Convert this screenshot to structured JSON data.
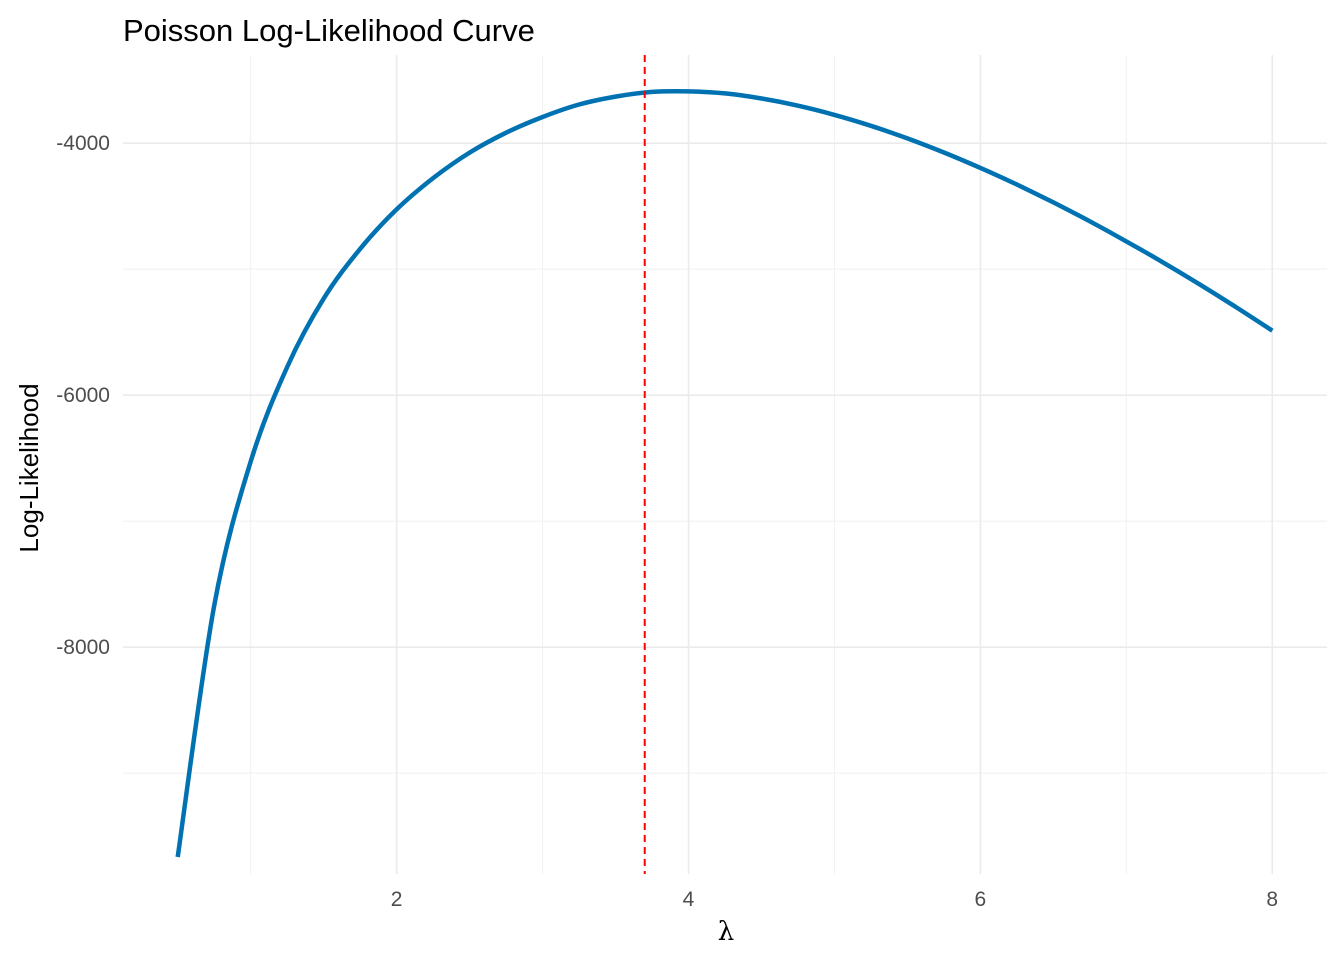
{
  "chart_data": {
    "type": "line",
    "title": "Poisson Log-Likelihood Curve",
    "xlabel": "λ",
    "ylabel": "Log-Likelihood",
    "xlim": [
      0.125,
      8.375
    ],
    "ylim": [
      -9800,
      -3300
    ],
    "x_ticks": [
      2,
      4,
      6,
      8
    ],
    "x_tick_labels": [
      "2",
      "4",
      "6",
      "8"
    ],
    "x_minor_ticks": [
      1,
      3,
      5,
      7
    ],
    "y_ticks": [
      -8000,
      -6000,
      -4000
    ],
    "y_tick_labels": [
      "-8000",
      "-6000",
      "-4000"
    ],
    "y_minor_ticks": [
      -9000,
      -7000,
      -5000
    ],
    "grid": true,
    "legend": "none",
    "series": [
      {
        "color": "#0072B2",
        "x": [
          0.5,
          0.75,
          1.0,
          1.25,
          1.5,
          1.75,
          2.0,
          2.25,
          2.5,
          2.75,
          3.0,
          3.25,
          3.5,
          3.75,
          4.0,
          4.25,
          4.5,
          4.75,
          5.0,
          5.25,
          5.5,
          5.75,
          6.0,
          6.25,
          6.5,
          6.75,
          7.0,
          7.25,
          7.5,
          7.75,
          8.0
        ],
        "y": [
          -9665,
          -7670,
          -6526,
          -5776,
          -5233,
          -4838,
          -4525,
          -4277,
          -4075,
          -3917,
          -3792,
          -3693,
          -3630,
          -3593,
          -3589,
          -3605,
          -3645,
          -3702,
          -3775,
          -3862,
          -3962,
          -4074,
          -4196,
          -4328,
          -4470,
          -4620,
          -4779,
          -4945,
          -5119,
          -5300,
          -5488
        ]
      }
    ],
    "reference_lines": [
      {
        "axis": "x",
        "value": 3.7,
        "color": "#FF0000",
        "style": "dashed"
      }
    ]
  }
}
